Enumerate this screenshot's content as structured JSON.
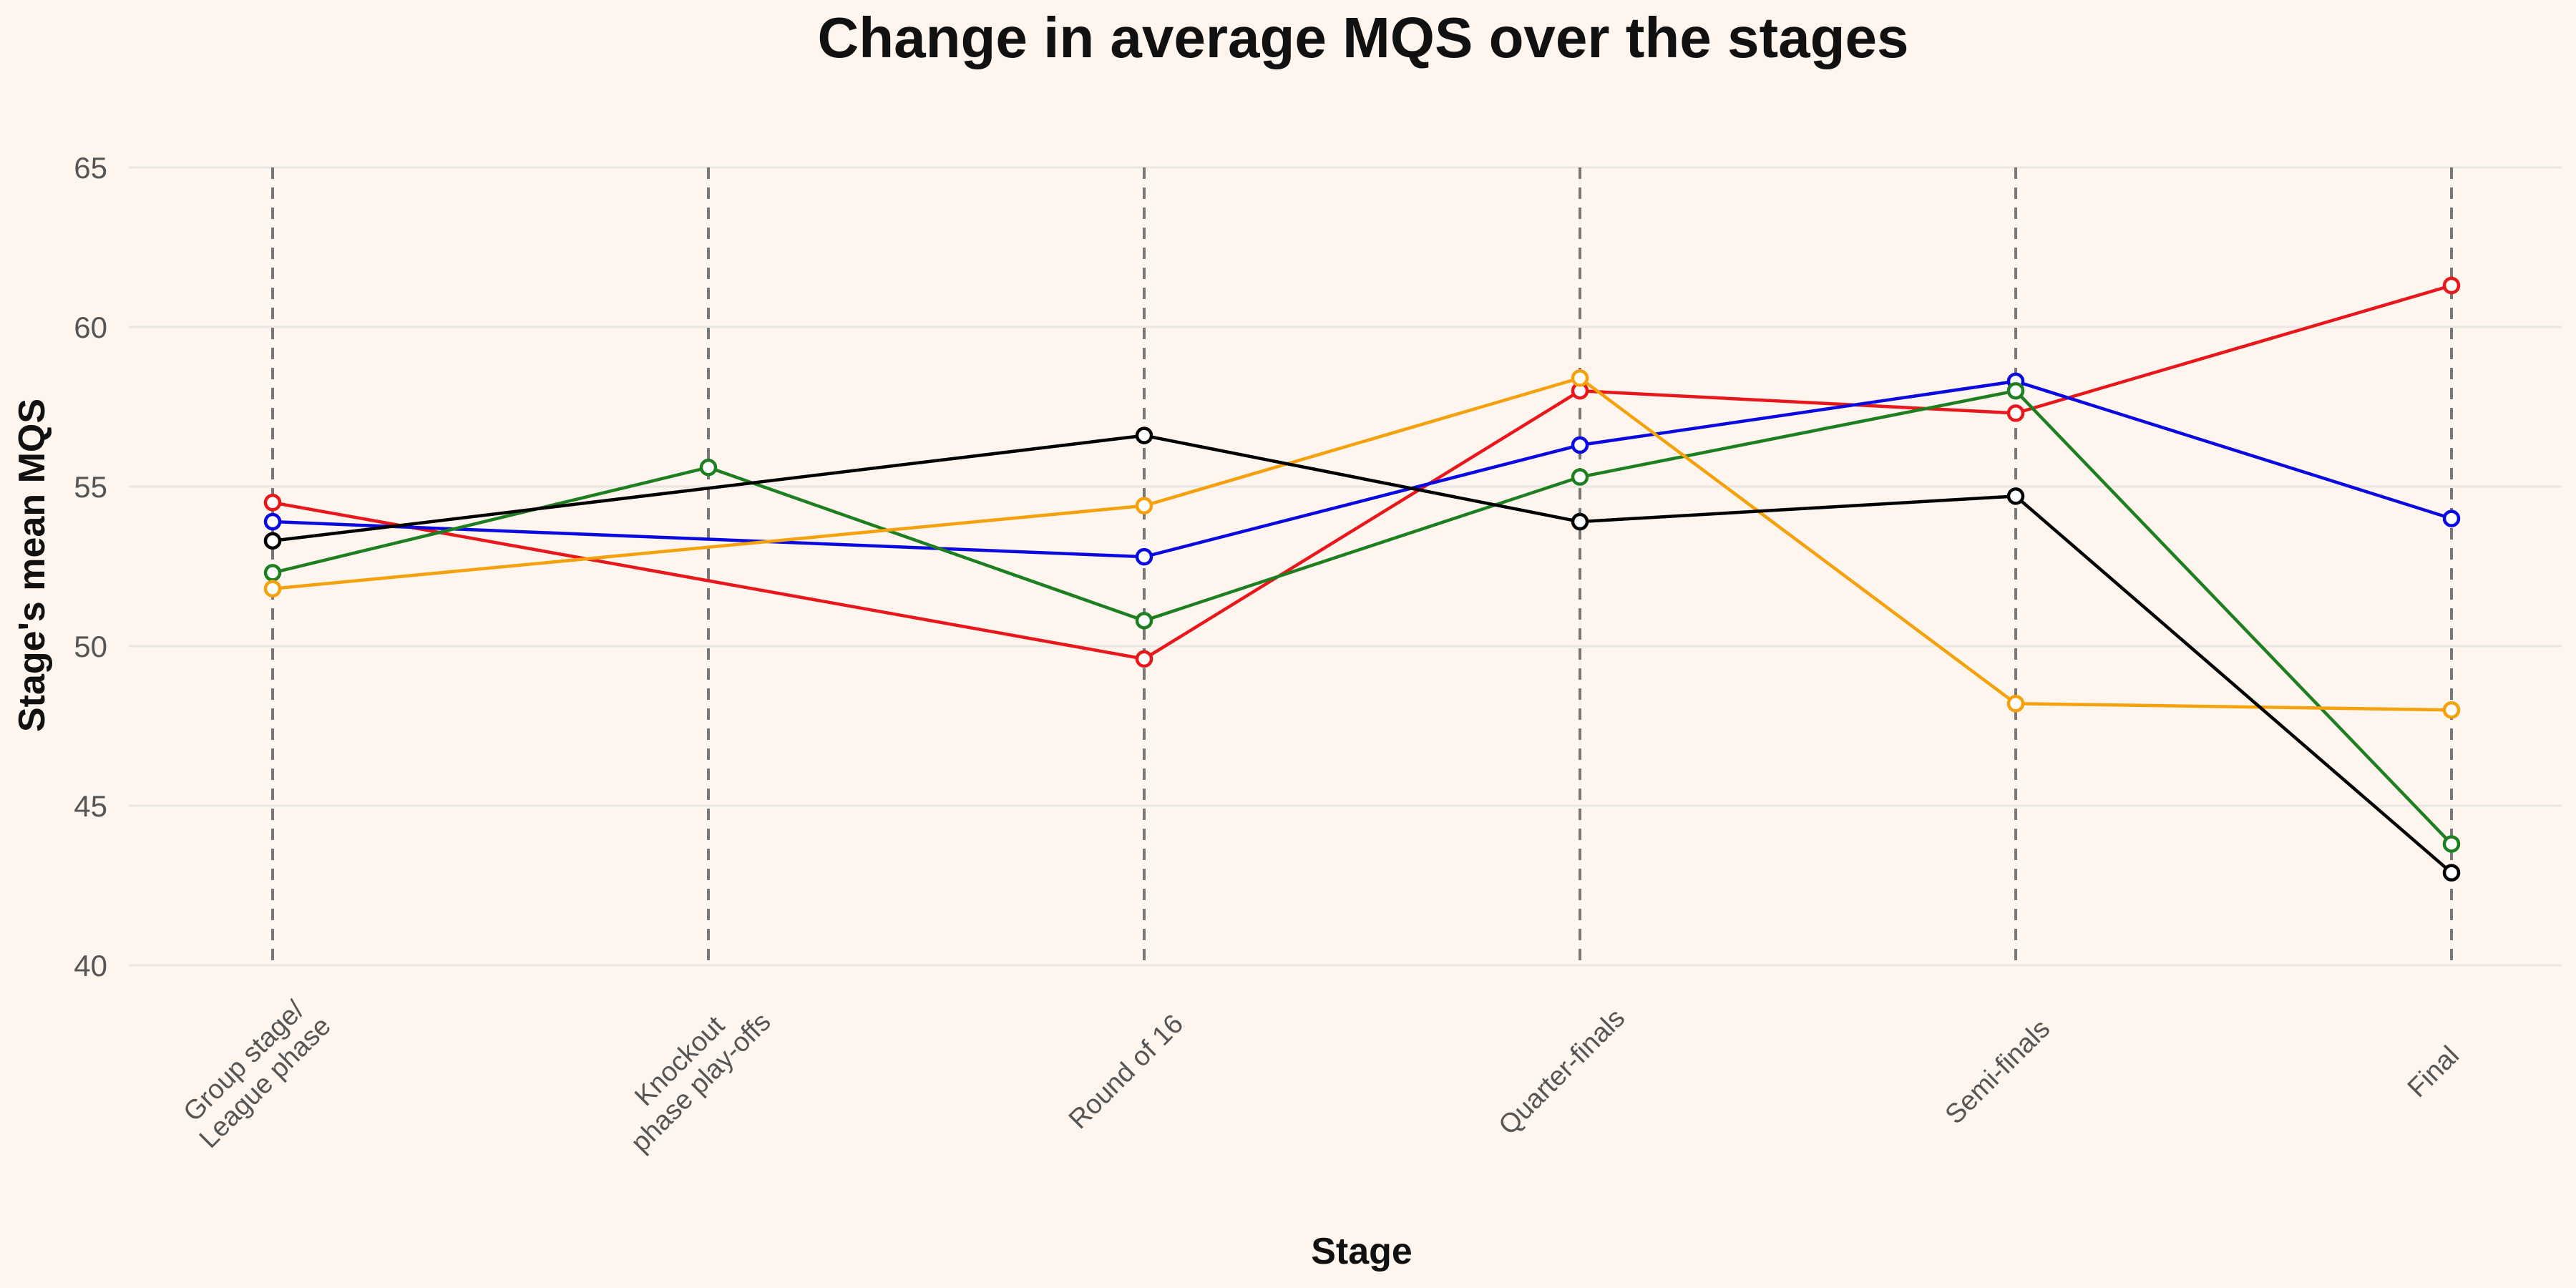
{
  "chart_data": {
    "type": "line",
    "title": "Change in average MQS over the stages",
    "xlabel": "Stage",
    "ylabel": "Stage's mean MQS",
    "ylim": [
      40,
      65
    ],
    "yticks": [
      40,
      45,
      50,
      55,
      60,
      65
    ],
    "categories": [
      [
        "Group stage/",
        "League phase"
      ],
      [
        "Knockout",
        "phase play-offs"
      ],
      [
        "Round of 16"
      ],
      [
        "Quarter-finals"
      ],
      [
        "Semi-finals"
      ],
      [
        "Final"
      ]
    ],
    "series": [
      {
        "name": "red",
        "color": "#E8171C",
        "values": [
          54.5,
          null,
          49.6,
          58.0,
          57.3,
          61.3
        ]
      },
      {
        "name": "blue",
        "color": "#0A0AE0",
        "values": [
          53.9,
          null,
          52.8,
          56.3,
          58.3,
          54.0
        ]
      },
      {
        "name": "green",
        "color": "#1E7F20",
        "values": [
          52.3,
          55.6,
          50.8,
          55.3,
          58.0,
          43.8
        ]
      },
      {
        "name": "orange",
        "color": "#F5A10C",
        "values": [
          51.8,
          null,
          54.4,
          58.4,
          48.2,
          48.0
        ]
      },
      {
        "name": "black",
        "color": "#000000",
        "values": [
          53.3,
          null,
          56.6,
          53.9,
          54.7,
          42.9
        ]
      }
    ]
  }
}
